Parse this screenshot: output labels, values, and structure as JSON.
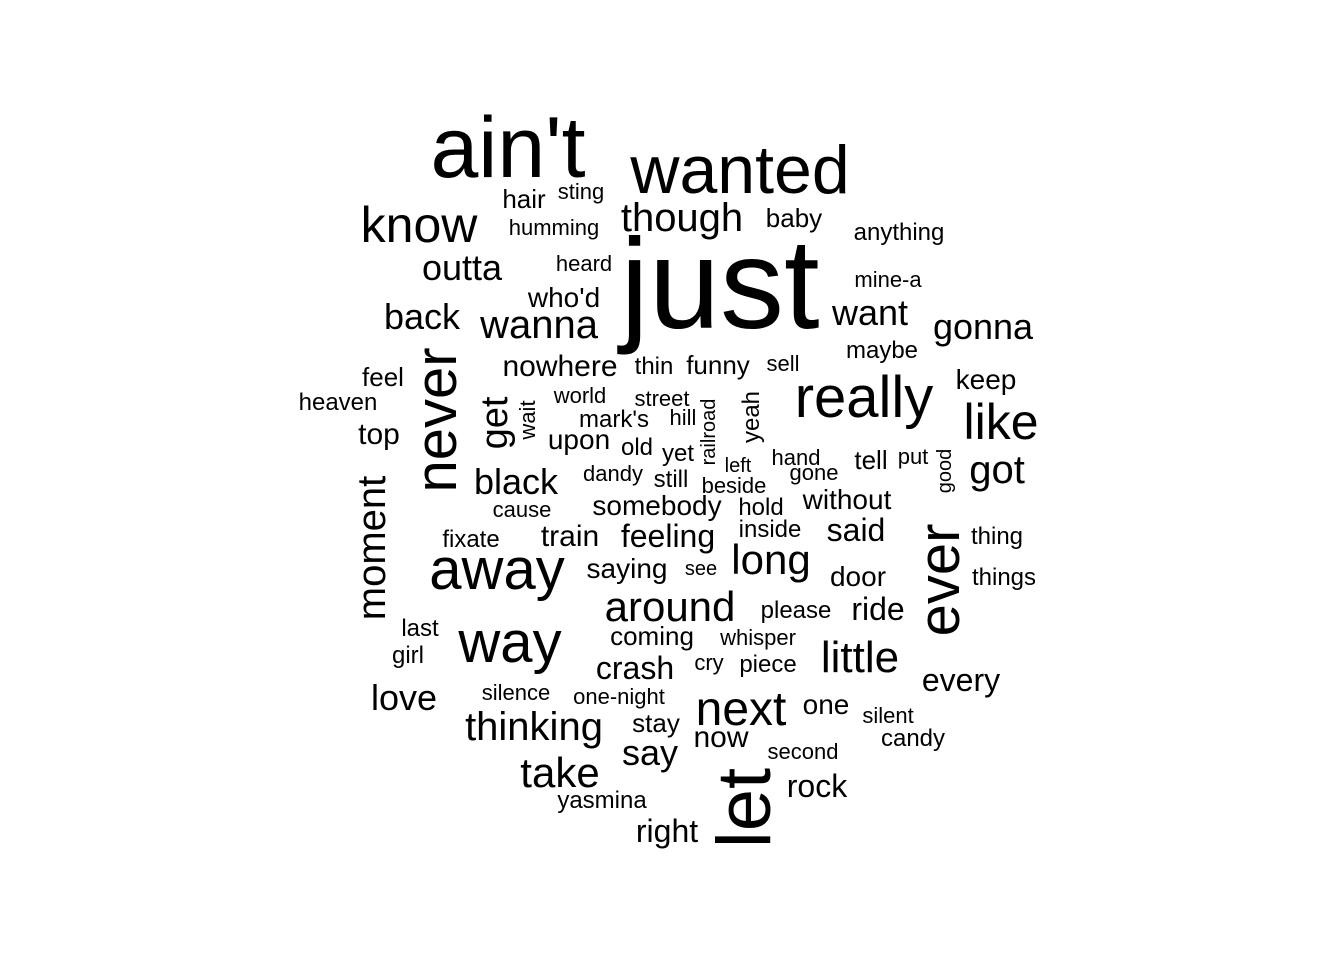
{
  "chart_data": {
    "type": "wordcloud",
    "word_color": "#000000",
    "background": "#ffffff",
    "words": [
      {
        "text": "just",
        "rank": 1
      },
      {
        "text": "ain't",
        "rank": 2
      },
      {
        "text": "let",
        "rank": 2
      },
      {
        "text": "wanted",
        "rank": 3
      },
      {
        "text": "never",
        "rank": 3
      },
      {
        "text": "really",
        "rank": 3
      },
      {
        "text": "ever",
        "rank": 3
      },
      {
        "text": "away",
        "rank": 3
      },
      {
        "text": "way",
        "rank": 3
      },
      {
        "text": "know",
        "rank": 4
      },
      {
        "text": "like",
        "rank": 4
      },
      {
        "text": "moment",
        "rank": 4
      },
      {
        "text": "next",
        "rank": 4
      },
      {
        "text": "though",
        "rank": 5
      },
      {
        "text": "around",
        "rank": 5
      },
      {
        "text": "long",
        "rank": 5
      },
      {
        "text": "little",
        "rank": 5
      },
      {
        "text": "got",
        "rank": 5
      },
      {
        "text": "get",
        "rank": 5
      },
      {
        "text": "wanna",
        "rank": 5
      },
      {
        "text": "take",
        "rank": 5
      },
      {
        "text": "thinking",
        "rank": 5
      },
      {
        "text": "outta",
        "rank": 6
      },
      {
        "text": "back",
        "rank": 6
      },
      {
        "text": "want",
        "rank": 6
      },
      {
        "text": "gonna",
        "rank": 6
      },
      {
        "text": "black",
        "rank": 6
      },
      {
        "text": "feeling",
        "rank": 6
      },
      {
        "text": "love",
        "rank": 6
      },
      {
        "text": "say",
        "rank": 6
      },
      {
        "text": "crash",
        "rank": 6
      },
      {
        "text": "nowhere",
        "rank": 7
      },
      {
        "text": "who'd",
        "rank": 7
      },
      {
        "text": "top",
        "rank": 7
      },
      {
        "text": "upon",
        "rank": 7
      },
      {
        "text": "train",
        "rank": 7
      },
      {
        "text": "said",
        "rank": 7
      },
      {
        "text": "ride",
        "rank": 7
      },
      {
        "text": "door",
        "rank": 7
      },
      {
        "text": "every",
        "rank": 7
      },
      {
        "text": "rock",
        "rank": 7
      },
      {
        "text": "right",
        "rank": 7
      },
      {
        "text": "somebody",
        "rank": 7
      },
      {
        "text": "saying",
        "rank": 7
      },
      {
        "text": "without",
        "rank": 7
      },
      {
        "text": "one",
        "rank": 7
      },
      {
        "text": "hair",
        "rank": 8
      },
      {
        "text": "baby",
        "rank": 8
      },
      {
        "text": "feel",
        "rank": 8
      },
      {
        "text": "keep",
        "rank": 8
      },
      {
        "text": "funny",
        "rank": 8
      },
      {
        "text": "tell",
        "rank": 8
      },
      {
        "text": "coming",
        "rank": 8
      },
      {
        "text": "stay",
        "rank": 8
      },
      {
        "text": "now",
        "rank": 8
      },
      {
        "text": "anything",
        "rank": 9
      },
      {
        "text": "maybe",
        "rank": 9
      },
      {
        "text": "heaven",
        "rank": 9
      },
      {
        "text": "fixate",
        "rank": 9
      },
      {
        "text": "mark's",
        "rank": 9
      },
      {
        "text": "old",
        "rank": 9
      },
      {
        "text": "yet",
        "rank": 9
      },
      {
        "text": "still",
        "rank": 9
      },
      {
        "text": "thin",
        "rank": 9
      },
      {
        "text": "hold",
        "rank": 9
      },
      {
        "text": "thing",
        "rank": 9
      },
      {
        "text": "things",
        "rank": 9
      },
      {
        "text": "inside",
        "rank": 9
      },
      {
        "text": "last",
        "rank": 9
      },
      {
        "text": "girl",
        "rank": 9
      },
      {
        "text": "please",
        "rank": 9
      },
      {
        "text": "whisper",
        "rank": 9
      },
      {
        "text": "cry",
        "rank": 9
      },
      {
        "text": "piece",
        "rank": 9
      },
      {
        "text": "candy",
        "rank": 9
      },
      {
        "text": "yasmina",
        "rank": 9
      },
      {
        "text": "yeah",
        "rank": 9
      },
      {
        "text": "humming",
        "rank": 10
      },
      {
        "text": "sting",
        "rank": 10
      },
      {
        "text": "heard",
        "rank": 10
      },
      {
        "text": "mine-a",
        "rank": 10
      },
      {
        "text": "sell",
        "rank": 10
      },
      {
        "text": "world",
        "rank": 10
      },
      {
        "text": "street",
        "rank": 10
      },
      {
        "text": "hill",
        "rank": 10
      },
      {
        "text": "hand",
        "rank": 10
      },
      {
        "text": "put",
        "rank": 10
      },
      {
        "text": "left",
        "rank": 10
      },
      {
        "text": "gone",
        "rank": 10
      },
      {
        "text": "dandy",
        "rank": 10
      },
      {
        "text": "beside",
        "rank": 10
      },
      {
        "text": "cause",
        "rank": 10
      },
      {
        "text": "see",
        "rank": 10
      },
      {
        "text": "silence",
        "rank": 10
      },
      {
        "text": "one-night",
        "rank": 10
      },
      {
        "text": "silent",
        "rank": 10
      },
      {
        "text": "second",
        "rank": 10
      },
      {
        "text": "wait",
        "rank": 10
      },
      {
        "text": "railroad",
        "rank": 10
      },
      {
        "text": "good",
        "rank": 10
      }
    ]
  }
}
